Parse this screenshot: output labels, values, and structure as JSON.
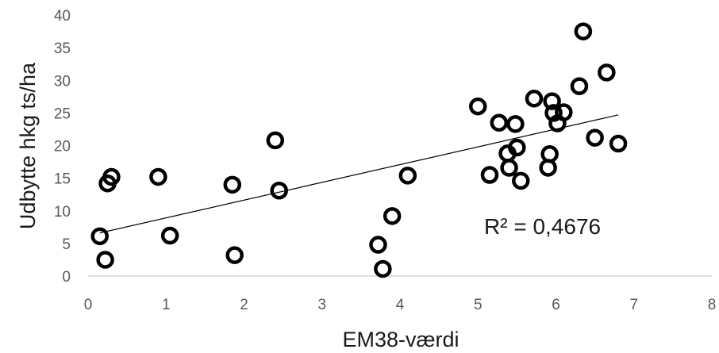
{
  "chart_data": {
    "type": "scatter",
    "xlabel": "EM38-værdi",
    "ylabel": "Udbytte hkg ts/ha",
    "xlim": [
      0,
      8
    ],
    "ylim": [
      0,
      40
    ],
    "x_ticks": [
      "0",
      "1",
      "2",
      "3",
      "4",
      "5",
      "6",
      "7",
      "8"
    ],
    "y_ticks": [
      "0",
      "5",
      "10",
      "15",
      "20",
      "25",
      "30",
      "35",
      "40"
    ],
    "grid": false,
    "annotation": "R² = 0,4676",
    "trendline": {
      "type": "linear",
      "x": [
        0.15,
        6.8
      ],
      "y": [
        6.6,
        24.7
      ]
    },
    "points": [
      {
        "x": 0.15,
        "y": 6.1
      },
      {
        "x": 0.22,
        "y": 2.5
      },
      {
        "x": 0.25,
        "y": 14.2
      },
      {
        "x": 0.3,
        "y": 15.2
      },
      {
        "x": 0.9,
        "y": 15.2
      },
      {
        "x": 1.05,
        "y": 6.2
      },
      {
        "x": 1.85,
        "y": 14.0
      },
      {
        "x": 1.88,
        "y": 3.2
      },
      {
        "x": 2.4,
        "y": 20.8
      },
      {
        "x": 2.45,
        "y": 13.1
      },
      {
        "x": 3.72,
        "y": 4.8
      },
      {
        "x": 3.78,
        "y": 1.1
      },
      {
        "x": 3.9,
        "y": 9.2
      },
      {
        "x": 4.1,
        "y": 15.4
      },
      {
        "x": 5.0,
        "y": 26.0
      },
      {
        "x": 5.15,
        "y": 15.5
      },
      {
        "x": 5.27,
        "y": 23.5
      },
      {
        "x": 5.38,
        "y": 18.8
      },
      {
        "x": 5.4,
        "y": 16.6
      },
      {
        "x": 5.48,
        "y": 23.3
      },
      {
        "x": 5.5,
        "y": 19.7
      },
      {
        "x": 5.55,
        "y": 14.6
      },
      {
        "x": 5.72,
        "y": 27.2
      },
      {
        "x": 5.9,
        "y": 16.6
      },
      {
        "x": 5.92,
        "y": 18.7
      },
      {
        "x": 5.95,
        "y": 26.8
      },
      {
        "x": 5.97,
        "y": 25.0
      },
      {
        "x": 6.02,
        "y": 23.4
      },
      {
        "x": 6.1,
        "y": 25.1
      },
      {
        "x": 6.3,
        "y": 29.1
      },
      {
        "x": 6.35,
        "y": 37.5
      },
      {
        "x": 6.5,
        "y": 21.2
      },
      {
        "x": 6.65,
        "y": 31.2
      },
      {
        "x": 6.8,
        "y": 20.3
      }
    ]
  }
}
